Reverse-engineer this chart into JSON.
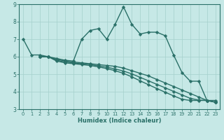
{
  "xlabel": "Humidex (Indice chaleur)",
  "bg_color": "#c6e8e6",
  "line_color": "#2a7068",
  "grid_color": "#a4d0cc",
  "ylim_min": 3,
  "ylim_max": 9,
  "yticks": [
    3,
    4,
    5,
    6,
    7,
    8,
    9
  ],
  "xticks": [
    0,
    1,
    2,
    3,
    4,
    5,
    6,
    7,
    8,
    9,
    10,
    11,
    12,
    13,
    14,
    15,
    16,
    17,
    18,
    19,
    20,
    21,
    22,
    23
  ],
  "lines": [
    {
      "x": [
        0,
        1,
        2,
        3,
        4,
        5,
        6,
        7,
        8,
        9,
        10,
        11,
        12,
        13,
        14,
        15,
        16,
        17,
        18,
        19,
        20,
        21,
        22,
        23
      ],
      "y": [
        7.0,
        6.1,
        6.1,
        6.0,
        5.9,
        5.8,
        5.75,
        7.0,
        7.5,
        7.6,
        7.0,
        7.85,
        8.85,
        7.85,
        7.3,
        7.4,
        7.4,
        7.2,
        6.1,
        5.1,
        4.6,
        4.6,
        3.5,
        3.5
      ]
    },
    {
      "x": [
        2,
        3,
        4,
        5,
        6,
        7,
        8,
        9,
        10,
        11,
        12,
        13,
        14,
        15,
        16,
        17,
        18,
        19,
        20,
        21,
        22,
        23
      ],
      "y": [
        6.0,
        6.0,
        5.85,
        5.75,
        5.7,
        5.65,
        5.6,
        5.55,
        5.5,
        5.45,
        5.35,
        5.2,
        5.05,
        4.9,
        4.7,
        4.5,
        4.3,
        4.1,
        3.9,
        3.7,
        3.5,
        3.4
      ]
    },
    {
      "x": [
        2,
        3,
        4,
        5,
        6,
        7,
        8,
        9,
        10,
        11,
        12,
        13,
        14,
        15,
        16,
        17,
        18,
        19,
        20,
        21,
        22,
        23
      ],
      "y": [
        6.0,
        6.0,
        5.8,
        5.7,
        5.65,
        5.6,
        5.55,
        5.48,
        5.4,
        5.3,
        5.18,
        5.02,
        4.82,
        4.62,
        4.42,
        4.22,
        4.02,
        3.82,
        3.62,
        3.52,
        3.5,
        3.4
      ]
    },
    {
      "x": [
        2,
        3,
        4,
        5,
        6,
        7,
        8,
        9,
        10,
        11,
        12,
        13,
        14,
        15,
        16,
        17,
        18,
        19,
        20,
        21,
        22,
        23
      ],
      "y": [
        6.0,
        6.0,
        5.75,
        5.65,
        5.6,
        5.55,
        5.5,
        5.42,
        5.32,
        5.2,
        5.05,
        4.85,
        4.62,
        4.4,
        4.18,
        3.97,
        3.76,
        3.57,
        3.5,
        3.5,
        3.5,
        3.4
      ]
    }
  ]
}
